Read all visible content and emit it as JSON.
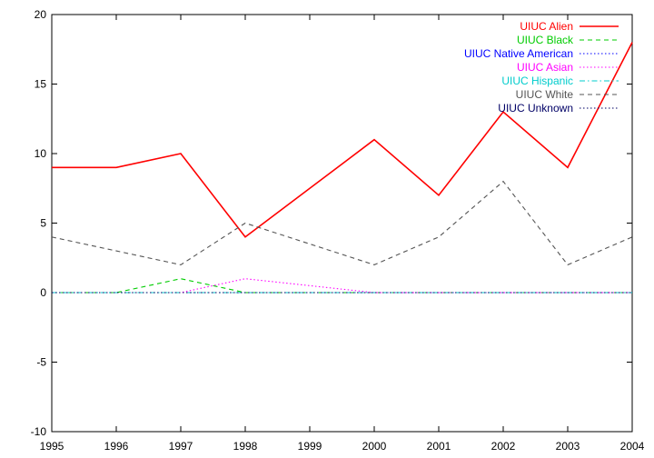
{
  "chart_data": {
    "type": "line",
    "title": "",
    "xlabel": "",
    "ylabel": "",
    "xlim": [
      1995,
      2004
    ],
    "ylim": [
      -10,
      20
    ],
    "x_ticks": [
      "1995",
      "1996",
      "1997",
      "1998",
      "1999",
      "2000",
      "2001",
      "2002",
      "2003",
      "2004"
    ],
    "y_ticks": [
      "-10",
      "-5",
      "0",
      "5",
      "10",
      "15",
      "20"
    ],
    "grid": false,
    "legend_position": "top-right",
    "x": [
      1995,
      1996,
      1997,
      1998,
      1999,
      2000,
      2001,
      2002,
      2003,
      2004
    ],
    "series": [
      {
        "name": "UIUC Alien",
        "color": "#ff0000",
        "dash": "solid",
        "values": [
          9,
          9,
          10,
          4,
          7.5,
          11,
          7,
          13,
          9,
          18
        ]
      },
      {
        "name": "UIUC Black",
        "color": "#00cc00",
        "dash": "dashed",
        "values": [
          0,
          0,
          1,
          0,
          0,
          0,
          0,
          0,
          0,
          0
        ]
      },
      {
        "name": "UIUC Native American",
        "color": "#0000ff",
        "dash": "dotted",
        "values": [
          0,
          0,
          0,
          0,
          0,
          0,
          0,
          0,
          0,
          0
        ]
      },
      {
        "name": "UIUC Asian",
        "color": "#ff00ff",
        "dash": "dotted",
        "values": [
          0,
          0,
          0,
          1,
          0.5,
          0,
          0,
          0,
          0,
          0
        ]
      },
      {
        "name": "UIUC Hispanic",
        "color": "#00cccc",
        "dash": "dashdot",
        "values": [
          0,
          0,
          0,
          0,
          0,
          0,
          0,
          0,
          0,
          0
        ]
      },
      {
        "name": "UIUC White",
        "color": "#555555",
        "dash": "dashed",
        "values": [
          4,
          3,
          2,
          5,
          3.5,
          2,
          4,
          8,
          2,
          4
        ]
      },
      {
        "name": "UIUC Unknown",
        "color": "#000066",
        "dash": "dotted",
        "values": [
          0,
          0,
          0,
          0,
          0,
          0,
          0,
          0,
          0,
          0
        ]
      }
    ]
  }
}
